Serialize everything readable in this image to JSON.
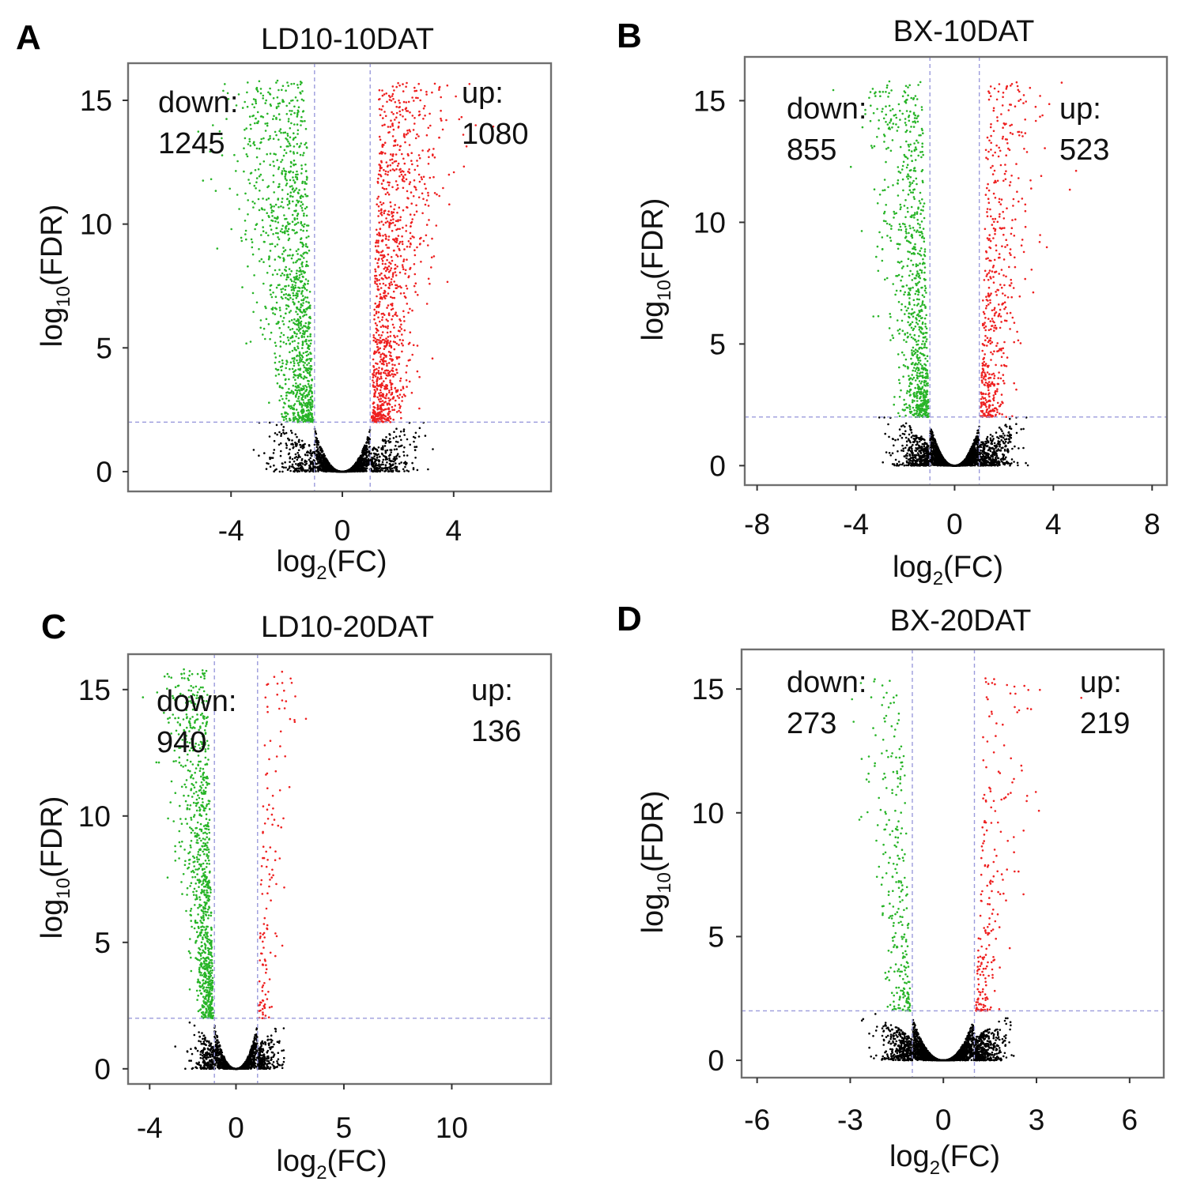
{
  "chart_data": [
    {
      "type": "scatter",
      "panel": "A",
      "title": "LD10-10DAT",
      "xlabel": "log2(FC)",
      "ylabel": "log10(FDR)",
      "xlim": [
        -7.7,
        7.5
      ],
      "ylim": [
        -0.8,
        16.5
      ],
      "xticks": [
        -4,
        0,
        4
      ],
      "yticks": [
        0,
        5,
        10,
        15
      ],
      "threshold_fc": [
        -1,
        1
      ],
      "threshold_fdr": 2,
      "down_text": "down:",
      "down_count": "1245",
      "up_text": "up:",
      "up_count": "1080",
      "shape": {
        "spread": 4.3,
        "power": 1.4,
        "steep_down": 0.55,
        "steep_up": 0.52,
        "nBlack": 1700,
        "nGreen": 1245,
        "nRed": 1080
      },
      "series": [
        {
          "name": "down",
          "color": "#27b427"
        },
        {
          "name": "up",
          "color": "#ee2020"
        },
        {
          "name": "not significant",
          "color": "#000000"
        }
      ]
    },
    {
      "type": "scatter",
      "panel": "B",
      "title": "BX-10DAT",
      "xlabel": "log2(FC)",
      "ylabel": "log10(FDR)",
      "xlim": [
        -8.5,
        8.6
      ],
      "ylim": [
        -0.8,
        16.8
      ],
      "xticks": [
        -8,
        -4,
        0,
        4,
        8
      ],
      "yticks": [
        0,
        5,
        10,
        15
      ],
      "threshold_fc": [
        -1,
        1
      ],
      "threshold_fdr": 2,
      "down_text": "down:",
      "down_count": "855",
      "up_text": "up:",
      "up_count": "523",
      "shape": {
        "spread": 4.0,
        "power": 1.6,
        "steep_down": 0.42,
        "steep_up": 0.45,
        "nBlack": 2600,
        "nGreen": 855,
        "nRed": 523
      },
      "series": [
        {
          "name": "down",
          "color": "#27b427"
        },
        {
          "name": "up",
          "color": "#ee2020"
        },
        {
          "name": "not significant",
          "color": "#000000"
        }
      ]
    },
    {
      "type": "scatter",
      "panel": "C",
      "title": "LD10-20DAT",
      "xlabel": "log2(FC)",
      "ylabel": "log10(FDR)",
      "xlim": [
        -5.0,
        14.6
      ],
      "ylim": [
        -0.6,
        16.4
      ],
      "xticks": [
        -4,
        0,
        5,
        10
      ],
      "yticks": [
        0,
        5,
        10,
        15
      ],
      "threshold_fc": [
        -1,
        1
      ],
      "threshold_fdr": 2,
      "down_text": "down:",
      "down_count": "940",
      "up_text": "up:",
      "up_count": "136",
      "shape": {
        "spread": 2.6,
        "power": 1.5,
        "steep_down": 0.65,
        "steep_up": 0.55,
        "nBlack": 1500,
        "nGreen": 940,
        "nRed": 136
      },
      "series": [
        {
          "name": "down",
          "color": "#27b427"
        },
        {
          "name": "up",
          "color": "#ee2020"
        },
        {
          "name": "not significant",
          "color": "#000000"
        }
      ]
    },
    {
      "type": "scatter",
      "panel": "D",
      "title": "BX-20DAT",
      "xlabel": "log2(FC)",
      "ylabel": "log10(FDR)",
      "xlim": [
        -6.5,
        7.1
      ],
      "ylim": [
        -0.7,
        16.6
      ],
      "xticks": [
        -6,
        -3,
        0,
        3,
        6
      ],
      "yticks": [
        0,
        5,
        10,
        15
      ],
      "threshold_fc": [
        -1,
        1
      ],
      "threshold_fdr": 2,
      "down_text": "down:",
      "down_count": "273",
      "up_text": "up:",
      "up_count": "219",
      "shape": {
        "spread": 2.6,
        "power": 1.7,
        "steep_down": 0.55,
        "steep_up": 0.55,
        "nBlack": 2800,
        "nGreen": 273,
        "nRed": 219
      },
      "series": [
        {
          "name": "down",
          "color": "#27b427"
        },
        {
          "name": "up",
          "color": "#ee2020"
        },
        {
          "name": "not significant",
          "color": "#000000"
        }
      ]
    }
  ]
}
